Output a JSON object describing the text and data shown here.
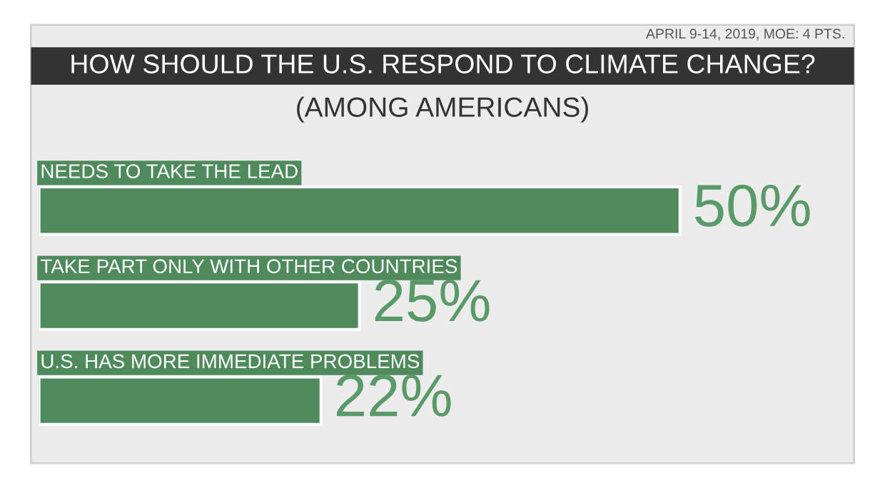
{
  "chart_data": {
    "type": "bar",
    "orientation": "horizontal",
    "title": "HOW SHOULD THE U.S. RESPOND TO CLIMATE CHANGE?",
    "subtitle": "(AMONG AMERICANS)",
    "annotations": [
      "APRIL 9-14, 2019, MOE: 4 PTS."
    ],
    "categories": [
      "NEEDS TO TAKE THE LEAD",
      "TAKE PART ONLY WITH OTHER COUNTRIES",
      "U.S. HAS MORE IMMEDIATE PROBLEMS"
    ],
    "values": [
      50,
      25,
      22
    ],
    "value_labels": [
      "50%",
      "25%",
      "22%"
    ],
    "color": "#4f8a5c"
  }
}
